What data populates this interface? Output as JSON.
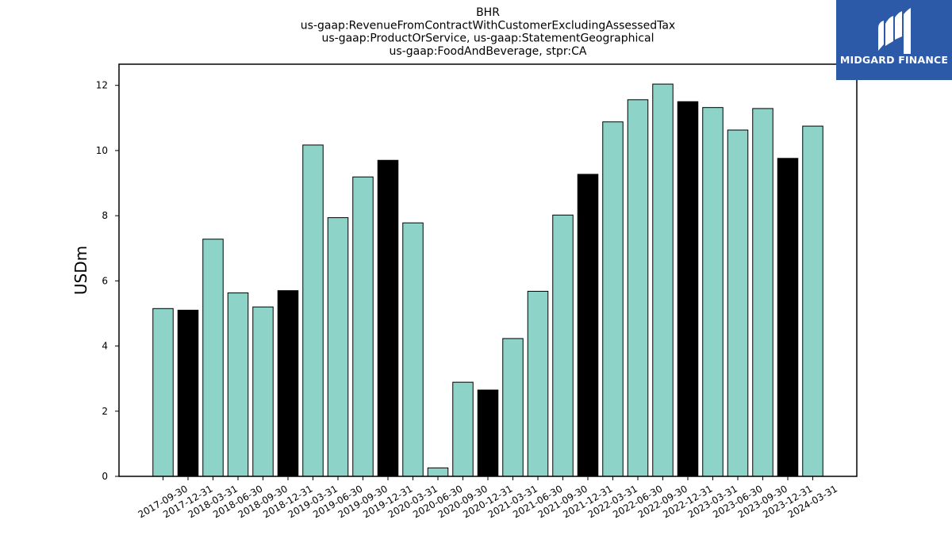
{
  "logo": {
    "text": "MIDGARD FINANCE",
    "icon": "midgard-m-logo-icon",
    "background": "#2d5aa8"
  },
  "chart_data": {
    "type": "bar",
    "title": [
      "BHR",
      "us-gaap:RevenueFromContractWithCustomerExcludingAssessedTax",
      "us-gaap:ProductOrService, us-gaap:StatementGeographical",
      "us-gaap:FoodAndBeverage, stpr:CA"
    ],
    "xlabel": "",
    "ylabel": "USDm",
    "ylim": [
      0,
      12.65
    ],
    "yticks": [
      0,
      2,
      4,
      6,
      8,
      10,
      12
    ],
    "grid": false,
    "categories": [
      "2017-09-30",
      "2017-12-31",
      "2018-03-31",
      "2018-06-30",
      "2018-09-30",
      "2018-12-31",
      "2019-03-31",
      "2019-06-30",
      "2019-09-30",
      "2019-12-31",
      "2020-03-31",
      "2020-06-30",
      "2020-09-30",
      "2020-12-31",
      "2021-03-31",
      "2021-06-30",
      "2021-09-30",
      "2021-12-31",
      "2022-03-31",
      "2022-06-30",
      "2022-09-30",
      "2022-12-31",
      "2023-03-31",
      "2023-06-30",
      "2023-09-30",
      "2023-12-31",
      "2024-03-31"
    ],
    "values": [
      5.15,
      5.1,
      7.28,
      5.63,
      5.2,
      5.7,
      10.17,
      7.94,
      9.19,
      9.7,
      7.78,
      0.26,
      2.89,
      2.65,
      4.23,
      5.68,
      8.02,
      9.27,
      10.88,
      11.56,
      12.04,
      11.5,
      11.32,
      10.63,
      11.29,
      9.76,
      10.75
    ],
    "colors": [
      "#8dd3c7",
      "#000000",
      "#8dd3c7",
      "#8dd3c7",
      "#8dd3c7",
      "#000000",
      "#8dd3c7",
      "#8dd3c7",
      "#8dd3c7",
      "#000000",
      "#8dd3c7",
      "#8dd3c7",
      "#8dd3c7",
      "#000000",
      "#8dd3c7",
      "#8dd3c7",
      "#8dd3c7",
      "#000000",
      "#8dd3c7",
      "#8dd3c7",
      "#8dd3c7",
      "#000000",
      "#8dd3c7",
      "#8dd3c7",
      "#8dd3c7",
      "#000000",
      "#8dd3c7"
    ]
  }
}
